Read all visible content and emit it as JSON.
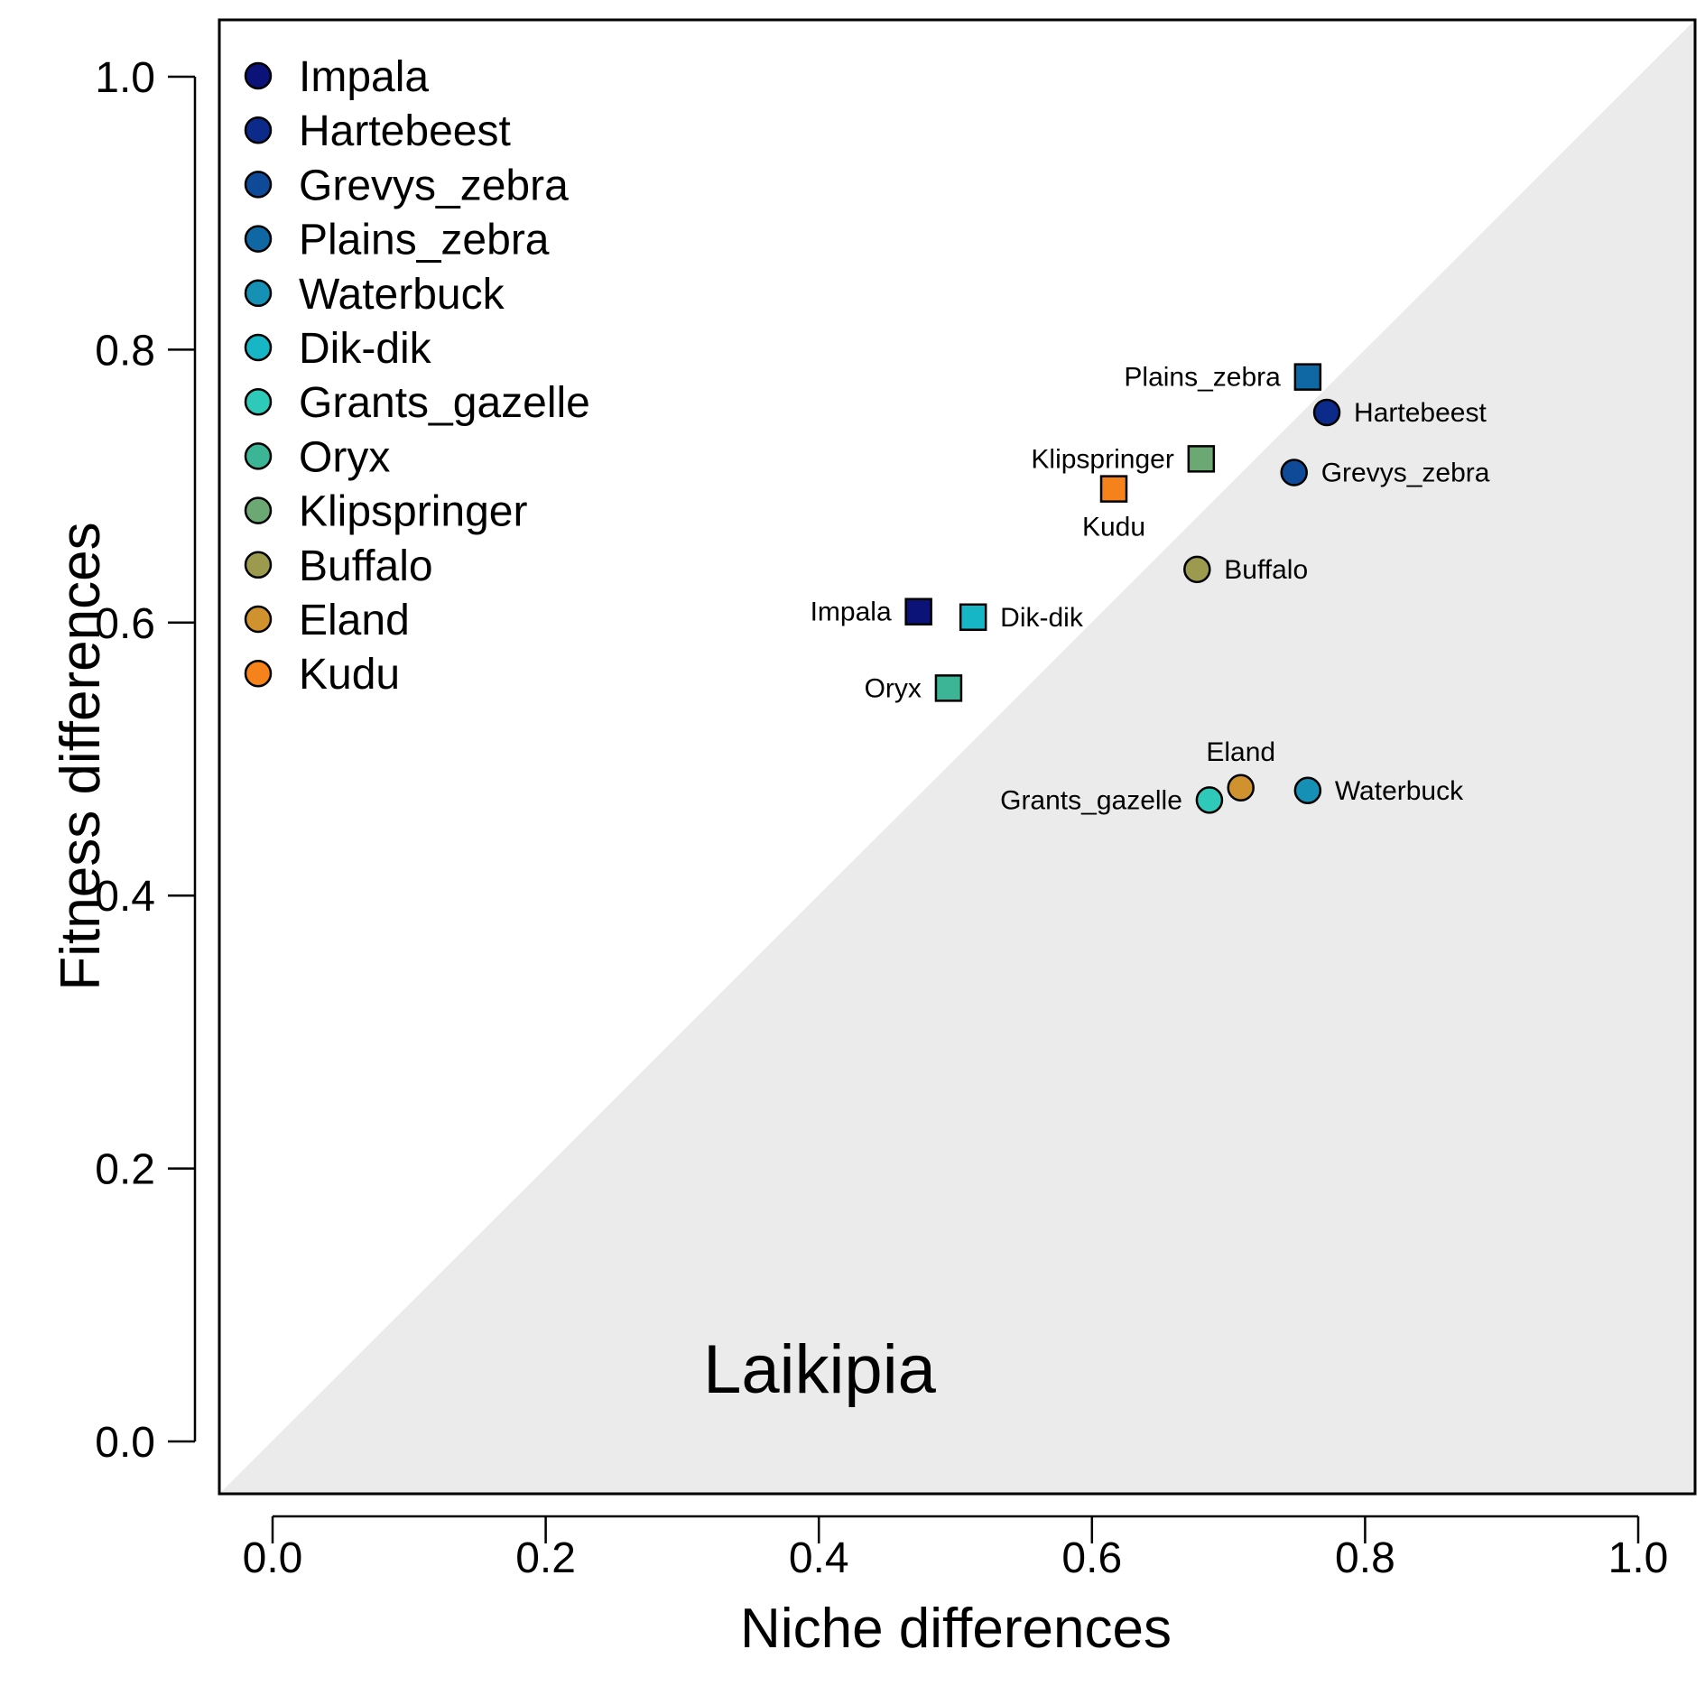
{
  "chart_data": {
    "type": "scatter",
    "title": "",
    "panel_label": "Laikipia",
    "xlabel": "Niche differences",
    "ylabel": "Fitness differences",
    "xlim": [
      -0.04,
      1.04
    ],
    "ylim": [
      -0.04,
      1.04
    ],
    "xticks": [
      "0.0",
      "0.2",
      "0.4",
      "0.6",
      "0.8",
      "1.0"
    ],
    "yticks": [
      "0.0",
      "0.2",
      "0.4",
      "0.6",
      "0.8",
      "1.0"
    ],
    "grid": false,
    "shaded_region": "below the 1:1 line (y < x)",
    "shaded_color": "#ebebeb",
    "legend_position": "top-left",
    "points": [
      {
        "name": "Impala",
        "x": 0.473,
        "y": 0.608,
        "shape": "square",
        "color": "#0b1278",
        "label_side": "left"
      },
      {
        "name": "Hartebeest",
        "x": 0.772,
        "y": 0.754,
        "shape": "circle",
        "color": "#0b2a8a",
        "label_side": "right"
      },
      {
        "name": "Grevys_zebra",
        "x": 0.748,
        "y": 0.71,
        "shape": "circle",
        "color": "#0f4a98",
        "label_side": "right"
      },
      {
        "name": "Plains_zebra",
        "x": 0.758,
        "y": 0.78,
        "shape": "square",
        "color": "#0f68a4",
        "label_side": "left"
      },
      {
        "name": "Waterbuck",
        "x": 0.758,
        "y": 0.477,
        "shape": "circle",
        "color": "#1690b4",
        "label_side": "right"
      },
      {
        "name": "Dik-dik",
        "x": 0.513,
        "y": 0.604,
        "shape": "square",
        "color": "#16b6c6",
        "label_side": "right"
      },
      {
        "name": "Grants_gazelle",
        "x": 0.686,
        "y": 0.47,
        "shape": "circle",
        "color": "#2ec9b8",
        "label_side": "left"
      },
      {
        "name": "Oryx",
        "x": 0.495,
        "y": 0.552,
        "shape": "square",
        "color": "#3cb496",
        "label_side": "left"
      },
      {
        "name": "Klipspringer",
        "x": 0.68,
        "y": 0.72,
        "shape": "square",
        "color": "#6ba873",
        "label_side": "left"
      },
      {
        "name": "Buffalo",
        "x": 0.677,
        "y": 0.639,
        "shape": "circle",
        "color": "#9c9a4e",
        "label_side": "right"
      },
      {
        "name": "Eland",
        "x": 0.709,
        "y": 0.479,
        "shape": "circle",
        "color": "#cf922e",
        "label_side": "top"
      },
      {
        "name": "Kudu",
        "x": 0.616,
        "y": 0.698,
        "shape": "square",
        "color": "#f5821a",
        "label_side": "bottom"
      }
    ]
  }
}
